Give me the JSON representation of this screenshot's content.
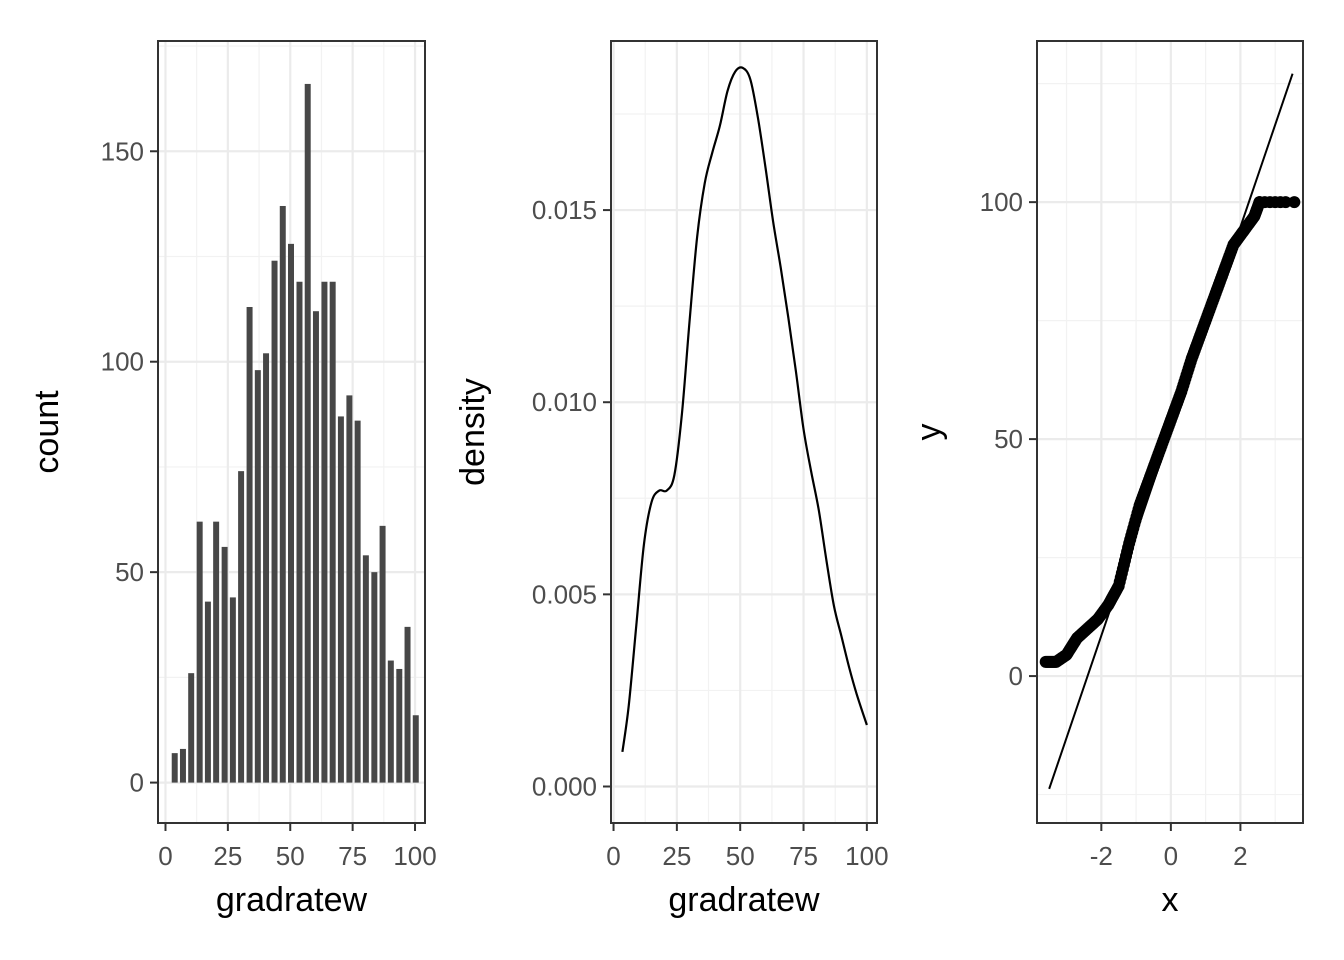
{
  "colors": {
    "panel_border": "#333333",
    "grid_major": "#ebebeb",
    "grid_minor": "#f2f2f2",
    "bar_fill": "#474747",
    "line": "#000000",
    "point": "#000000",
    "tick_text": "#4d4d4d"
  },
  "chart_data": [
    {
      "type": "bar",
      "xlabel": "gradratew",
      "ylabel": "count",
      "xlim": [
        -3,
        104
      ],
      "ylim": [
        -9.6,
        176.2
      ],
      "x_ticks": [
        0,
        25,
        50,
        75,
        100
      ],
      "x_tick_labels": [
        "0",
        "25",
        "50",
        "75",
        "100"
      ],
      "y_ticks": [
        0,
        50,
        100,
        150
      ],
      "y_tick_labels": [
        "0",
        "50",
        "100",
        "150"
      ],
      "grid": true,
      "bin_width": 3.33,
      "bin_centers": [
        3.7,
        7.0,
        10.3,
        13.7,
        17.0,
        20.3,
        23.7,
        27.0,
        30.3,
        33.7,
        37.0,
        40.3,
        43.7,
        47.0,
        50.3,
        53.7,
        57.0,
        60.3,
        63.7,
        67.0,
        70.3,
        73.7,
        77.0,
        80.3,
        83.7,
        87.0,
        90.3,
        93.7,
        97.0,
        100.3
      ],
      "values": [
        7,
        8,
        26,
        62,
        43,
        62,
        56,
        44,
        74,
        113,
        98,
        102,
        124,
        137,
        128,
        119,
        166,
        112,
        119,
        119,
        87,
        92,
        86,
        54,
        50,
        61,
        29,
        27,
        37,
        16
      ]
    },
    {
      "type": "line",
      "xlabel": "gradratew",
      "ylabel": "density",
      "xlim": [
        -1,
        104
      ],
      "ylim": [
        -0.00095,
        0.0194
      ],
      "x_ticks": [
        0,
        25,
        50,
        75,
        100
      ],
      "x_tick_labels": [
        "0",
        "25",
        "50",
        "75",
        "100"
      ],
      "y_ticks": [
        0.0,
        0.005,
        0.01,
        0.015
      ],
      "y_tick_labels": [
        "0.000",
        "0.005",
        "0.010",
        "0.015"
      ],
      "grid": true,
      "x": [
        3.5,
        6,
        9,
        12,
        15,
        18,
        21,
        24,
        27,
        30,
        33,
        36,
        39,
        42,
        45,
        48,
        51,
        54,
        57,
        60,
        63,
        66,
        69,
        72,
        75,
        78,
        81,
        84,
        87,
        90,
        93,
        96,
        100
      ],
      "y": [
        0.0009,
        0.0021,
        0.0042,
        0.0063,
        0.0074,
        0.0077,
        0.0077,
        0.0081,
        0.0097,
        0.0121,
        0.0143,
        0.0157,
        0.0165,
        0.0172,
        0.0181,
        0.0186,
        0.0187,
        0.0184,
        0.0174,
        0.0161,
        0.0147,
        0.0135,
        0.0122,
        0.0108,
        0.0093,
        0.0082,
        0.0072,
        0.0059,
        0.0047,
        0.0039,
        0.0031,
        0.0024,
        0.0016
      ]
    },
    {
      "type": "scatter",
      "xlabel": "x",
      "ylabel": "y",
      "xlim": [
        -3.85,
        3.8
      ],
      "ylim": [
        -31,
        134
      ],
      "x_ticks": [
        -2,
        0,
        2
      ],
      "x_tick_labels": [
        "-2",
        "0",
        "2"
      ],
      "y_ticks": [
        0,
        50,
        100
      ],
      "y_tick_labels": [
        "0",
        "50",
        "100"
      ],
      "grid": true,
      "reference_line": {
        "from": [
          -3.5,
          -23.8
        ],
        "to": [
          3.5,
          127.1
        ]
      },
      "quantile_curve": {
        "x": [
          -3.6,
          -3.3,
          -3.0,
          -2.7,
          -2.4,
          -2.1,
          -1.8,
          -1.5,
          -1.2,
          -0.9,
          -0.6,
          -0.3,
          0.0,
          0.3,
          0.6,
          0.9,
          1.2,
          1.5,
          1.8,
          2.1,
          2.4,
          2.55
        ],
        "y": [
          3,
          3,
          4.5,
          8,
          10,
          12,
          15,
          19,
          28,
          36,
          42,
          48,
          54,
          60,
          67,
          73,
          79,
          85,
          91,
          94,
          97,
          100
        ]
      },
      "upper_points_x": [
        2.55,
        2.7,
        2.85,
        3.0,
        3.15,
        3.3,
        3.55
      ],
      "upper_points_y": [
        100,
        100,
        100,
        100,
        100,
        100,
        100
      ]
    }
  ]
}
